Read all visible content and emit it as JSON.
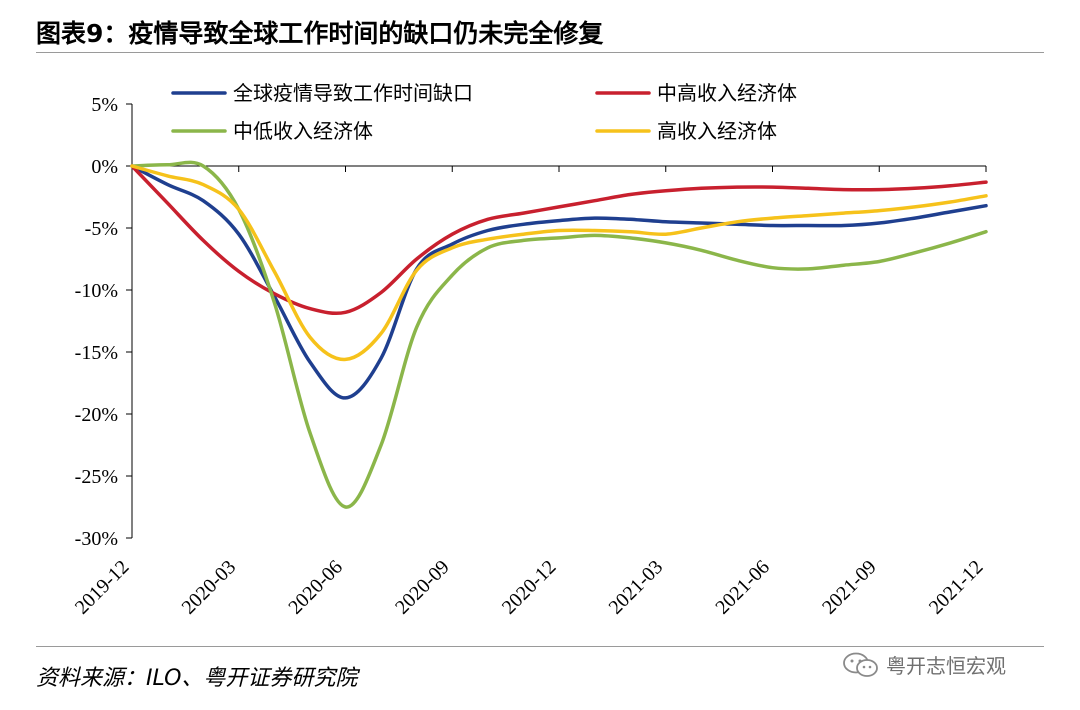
{
  "title": "图表9：疫情导致全球工作时间的缺口仍未完全修复",
  "source": "资料来源：ILO、粤开证券研究院",
  "watermark": {
    "text": "粤开志恒宏观",
    "icon": "wechat-icon"
  },
  "chart_data": {
    "type": "line",
    "title": "",
    "xlabel": "",
    "ylabel": "",
    "ylim": [
      -30,
      5
    ],
    "y_ticks": [
      5,
      0,
      -5,
      -10,
      -15,
      -20,
      -25,
      -30
    ],
    "y_tick_labels": [
      "5%",
      "0%",
      "-5%",
      "-10%",
      "-15%",
      "-20%",
      "-25%",
      "-30%"
    ],
    "x_tick_labels": [
      "2019-12",
      "2020-03",
      "2020-06",
      "2020-09",
      "2020-12",
      "2021-03",
      "2021-06",
      "2021-09",
      "2021-12"
    ],
    "grid": false,
    "legend_position": "top",
    "x": [
      "2019-12",
      "2020-01",
      "2020-02",
      "2020-03",
      "2020-04",
      "2020-05",
      "2020-06",
      "2020-07",
      "2020-08",
      "2020-09",
      "2020-10",
      "2020-11",
      "2020-12",
      "2021-01",
      "2021-02",
      "2021-03",
      "2021-04",
      "2021-05",
      "2021-06",
      "2021-07",
      "2021-08",
      "2021-09",
      "2021-10",
      "2021-11",
      "2021-12"
    ],
    "series": [
      {
        "name": "全球疫情导致工作时间缺口",
        "color": "#1F3F8F",
        "values": [
          0,
          -1.5,
          -2.8,
          -5.5,
          -10.5,
          -15.8,
          -18.7,
          -15.5,
          -8.3,
          -6.3,
          -5.2,
          -4.7,
          -4.4,
          -4.2,
          -4.3,
          -4.5,
          -4.6,
          -4.7,
          -4.8,
          -4.8,
          -4.8,
          -4.6,
          -4.2,
          -3.7,
          -3.2
        ]
      },
      {
        "name": "中高收入经济体",
        "color": "#C8202E",
        "values": [
          0,
          -3.0,
          -6.0,
          -8.5,
          -10.3,
          -11.5,
          -11.8,
          -10.2,
          -7.5,
          -5.5,
          -4.3,
          -3.8,
          -3.3,
          -2.8,
          -2.3,
          -2.0,
          -1.8,
          -1.7,
          -1.7,
          -1.8,
          -1.9,
          -1.9,
          -1.8,
          -1.6,
          -1.3
        ]
      },
      {
        "name": "中低收入经济体",
        "color": "#8BB64A",
        "values": [
          0,
          0.1,
          0.0,
          -3.5,
          -11.0,
          -21.5,
          -27.5,
          -22.5,
          -13.0,
          -8.8,
          -6.6,
          -6.0,
          -5.8,
          -5.6,
          -5.8,
          -6.2,
          -6.8,
          -7.6,
          -8.2,
          -8.3,
          -8.0,
          -7.7,
          -7.0,
          -6.2,
          -5.3
        ]
      },
      {
        "name": "高收入经济体",
        "color": "#F6C21B",
        "values": [
          0,
          -0.8,
          -1.5,
          -3.5,
          -8.5,
          -13.8,
          -15.6,
          -13.5,
          -8.4,
          -6.6,
          -5.9,
          -5.5,
          -5.2,
          -5.2,
          -5.3,
          -5.5,
          -5.0,
          -4.5,
          -4.2,
          -4.0,
          -3.8,
          -3.6,
          -3.3,
          -2.9,
          -2.4
        ]
      }
    ]
  }
}
